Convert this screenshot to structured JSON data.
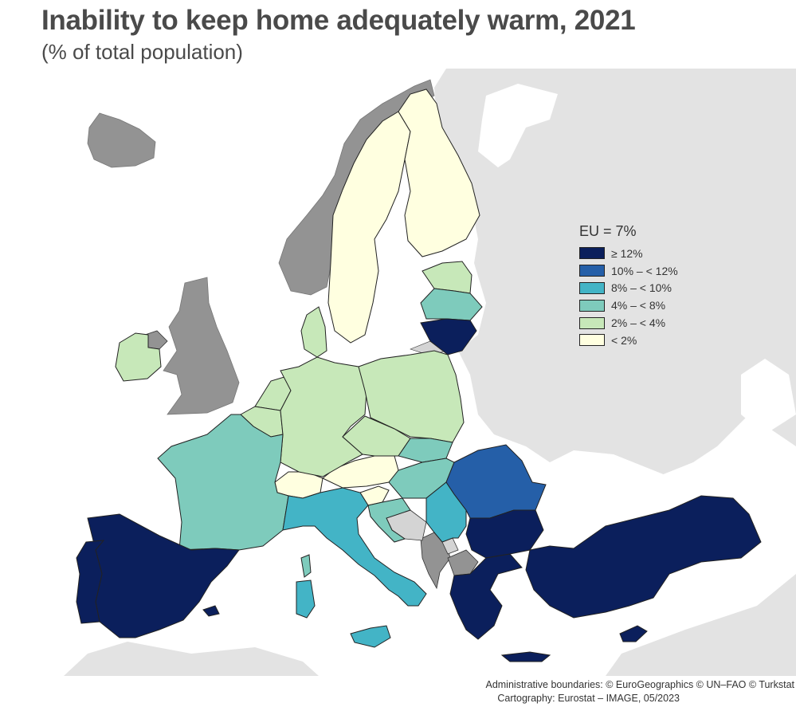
{
  "title": "Inability to keep home adequately warm, 2021",
  "subtitle": "(% of total population)",
  "legend": {
    "title": "EU = 7%",
    "classes": [
      {
        "label": "≥ 12%",
        "color": "#0b1f5c"
      },
      {
        "label": "10% – < 12%",
        "color": "#255fa8"
      },
      {
        "label": "8% – < 10%",
        "color": "#43b4c6"
      },
      {
        "label": "4% – < 8%",
        "color": "#7ecbbc"
      },
      {
        "label": "2% – < 4%",
        "color": "#c7e8b9"
      },
      {
        "label": "< 2%",
        "color": "#ffffe0"
      }
    ]
  },
  "colors": {
    "sea": "#ffffff",
    "non_eu": "#e3e3e3",
    "no_data": "#939393",
    "other_light": "#d4d4d4",
    "border": "#1a1a1a"
  },
  "footer": {
    "line1": "Administrative boundaries: © EuroGeographics © UN–FAO © Turkstat",
    "line2": "Cartography: Eurostat – IMAGE, 05/2023"
  }
}
